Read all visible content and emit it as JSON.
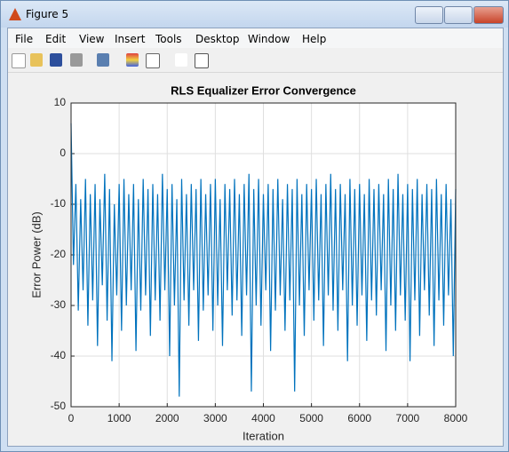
{
  "window": {
    "title": "Figure 5",
    "menu": [
      "File",
      "Edit",
      "View",
      "Insert",
      "Tools",
      "Desktop",
      "Window",
      "Help"
    ]
  },
  "chart_data": {
    "type": "line",
    "title": "RLS Equalizer Error Convergence",
    "x_label": "Iteration",
    "y_label": "Error Power (dB)",
    "xlim": [
      0,
      8000
    ],
    "xticks": [
      0,
      1000,
      2000,
      3000,
      4000,
      5000,
      6000,
      7000,
      8000
    ],
    "ylim": [
      -50,
      10
    ],
    "yticks": [
      -50,
      -40,
      -30,
      -20,
      -10,
      0,
      10
    ],
    "grid": true,
    "x": [
      0,
      50,
      100,
      150,
      200,
      250,
      300,
      350,
      400,
      450,
      500,
      550,
      600,
      650,
      700,
      750,
      800,
      850,
      900,
      950,
      1000,
      1050,
      1100,
      1150,
      1200,
      1250,
      1300,
      1350,
      1400,
      1450,
      1500,
      1550,
      1600,
      1650,
      1700,
      1750,
      1800,
      1850,
      1900,
      1950,
      2000,
      2050,
      2100,
      2150,
      2200,
      2250,
      2300,
      2350,
      2400,
      2450,
      2500,
      2550,
      2600,
      2650,
      2700,
      2750,
      2800,
      2850,
      2900,
      2950,
      3000,
      3050,
      3100,
      3150,
      3200,
      3250,
      3300,
      3350,
      3400,
      3450,
      3500,
      3550,
      3600,
      3650,
      3700,
      3750,
      3800,
      3850,
      3900,
      3950,
      4000,
      4050,
      4100,
      4150,
      4200,
      4250,
      4300,
      4350,
      4400,
      4450,
      4500,
      4550,
      4600,
      4650,
      4700,
      4750,
      4800,
      4850,
      4900,
      4950,
      5000,
      5050,
      5100,
      5150,
      5200,
      5250,
      5300,
      5350,
      5400,
      5450,
      5500,
      5550,
      5600,
      5650,
      5700,
      5750,
      5800,
      5850,
      5900,
      5950,
      6000,
      6050,
      6100,
      6150,
      6200,
      6250,
      6300,
      6350,
      6400,
      6450,
      6500,
      6550,
      6600,
      6650,
      6700,
      6750,
      6800,
      6850,
      6900,
      6950,
      7000,
      7050,
      7100,
      7150,
      7200,
      7250,
      7300,
      7350,
      7400,
      7450,
      7500,
      7550,
      7600,
      7650,
      7700,
      7750,
      7800,
      7850,
      7900,
      7950,
      8000
    ],
    "series": [
      {
        "color": "#0072bd",
        "values": [
          6,
          -22,
          -6,
          -31,
          -9,
          -27,
          -5,
          -34,
          -8,
          -29,
          -6,
          -38,
          -9,
          -26,
          -4,
          -33,
          -7,
          -41,
          -10,
          -28,
          -6,
          -35,
          -5,
          -30,
          -8,
          -27,
          -6,
          -39,
          -9,
          -31,
          -5,
          -28,
          -7,
          -36,
          -6,
          -29,
          -8,
          -33,
          -4,
          -27,
          -7,
          -40,
          -6,
          -30,
          -9,
          -48,
          -5,
          -29,
          -8,
          -34,
          -6,
          -27,
          -7,
          -37,
          -5,
          -31,
          -8,
          -28,
          -6,
          -35,
          -5,
          -30,
          -9,
          -38,
          -6,
          -27,
          -7,
          -32,
          -5,
          -29,
          -8,
          -36,
          -6,
          -28,
          -4,
          -47,
          -7,
          -30,
          -5,
          -34,
          -8,
          -27,
          -6,
          -39,
          -7,
          -31,
          -5,
          -28,
          -9,
          -35,
          -6,
          -29,
          -7,
          -47,
          -5,
          -30,
          -8,
          -36,
          -6,
          -27,
          -7,
          -33,
          -5,
          -29,
          -8,
          -38,
          -6,
          -28,
          -4,
          -31,
          -7,
          -35,
          -6,
          -27,
          -8,
          -41,
          -5,
          -30,
          -7,
          -34,
          -6,
          -28,
          -8,
          -37,
          -5,
          -29,
          -7,
          -32,
          -6,
          -27,
          -8,
          -39,
          -5,
          -30,
          -7,
          -35,
          -4,
          -28,
          -8,
          -33,
          -6,
          -41,
          -7,
          -29,
          -5,
          -36,
          -8,
          -27,
          -6,
          -32,
          -7,
          -38,
          -5,
          -29,
          -8,
          -34,
          -6,
          -28,
          -9,
          -40,
          -7
        ]
      }
    ]
  }
}
